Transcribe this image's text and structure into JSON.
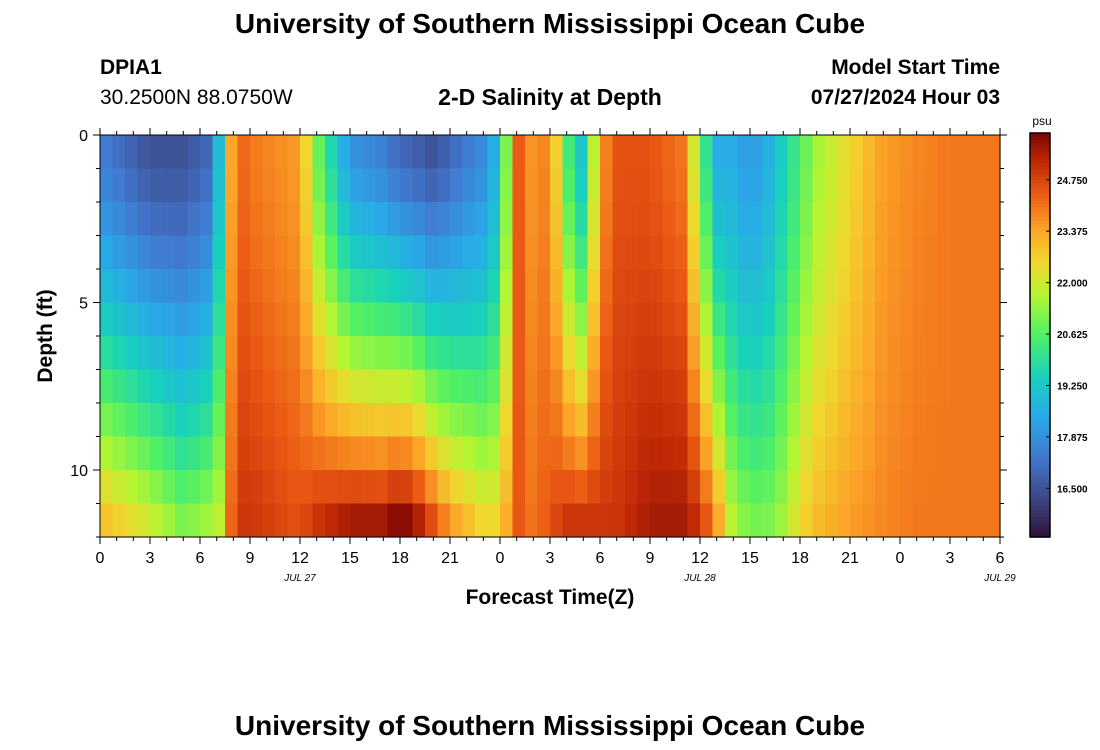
{
  "header": {
    "title": "University of Southern Mississippi Ocean Cube",
    "station_id": "DPIA1",
    "station_coords": "30.2500N  88.0750W",
    "plot_title": "2-D Salinity at Depth",
    "model_start_label": "Model Start Time",
    "model_start_value": "07/27/2024 Hour 03"
  },
  "footer": {
    "title": "University of Southern Mississippi Ocean Cube"
  },
  "chart_data": {
    "type": "heatmap",
    "title": "2-D Salinity at Depth",
    "xlabel": "Forecast Time(Z)",
    "ylabel": "Depth (ft)",
    "x_ticks": [
      "0",
      "3",
      "6",
      "9",
      "12",
      "15",
      "18",
      "21",
      "0",
      "3",
      "6",
      "9",
      "12",
      "15",
      "18",
      "21",
      "0",
      "3",
      "6"
    ],
    "date_labels": [
      {
        "label": "JUL 27",
        "hour": 12
      },
      {
        "label": "JUL 28",
        "hour": 36
      },
      {
        "label": "JUL 29",
        "hour": 54
      }
    ],
    "xlim_hours": [
      0,
      54
    ],
    "y_ticks": [
      0,
      5,
      10
    ],
    "ylim_ft": [
      0,
      12
    ],
    "colorbar": {
      "unit": "psu",
      "ticks": [
        "24.750",
        "23.375",
        "22.000",
        "20.625",
        "19.250",
        "17.875",
        "16.500"
      ],
      "vmin": 15.2,
      "vmax": 26.0
    },
    "depths_ft": [
      0.5,
      1.5,
      2.5,
      3.5,
      4.5,
      5.5,
      6.5,
      7.5,
      8.5,
      9.5,
      10.5,
      11.5
    ],
    "profile_hours": [
      0,
      3,
      5,
      6.5,
      7.5,
      8,
      9,
      12,
      13,
      15,
      17,
      18,
      19,
      20,
      21,
      23,
      24,
      25,
      26,
      27,
      28,
      29,
      30,
      31,
      33,
      35,
      36,
      37,
      38,
      39,
      40,
      41,
      42,
      43,
      45,
      47,
      49,
      51,
      53,
      54
    ],
    "profile_surface": [
      17.5,
      16.5,
      16.5,
      17.0,
      20.0,
      24.5,
      24.0,
      23.5,
      21.0,
      18.0,
      17.5,
      17.0,
      16.8,
      16.5,
      17.0,
      17.8,
      19.0,
      24.5,
      23.5,
      24.0,
      20.5,
      19.0,
      23.5,
      24.5,
      24.5,
      24.0,
      21.0,
      18.5,
      18.5,
      18.0,
      18.5,
      19.5,
      20.5,
      21.5,
      22.5,
      23.5,
      23.8,
      24.0,
      24.0,
      24.0
    ],
    "profile_bottom": [
      23.0,
      22.0,
      21.0,
      21.5,
      22.0,
      25.0,
      25.0,
      24.5,
      25.0,
      25.5,
      25.5,
      26.0,
      25.5,
      24.5,
      23.5,
      22.5,
      22.5,
      24.5,
      24.0,
      24.5,
      25.0,
      25.0,
      25.0,
      25.0,
      25.5,
      25.5,
      25.0,
      23.5,
      21.5,
      21.0,
      21.0,
      21.5,
      22.5,
      23.0,
      23.5,
      23.8,
      24.0,
      24.0,
      24.0,
      24.0
    ]
  }
}
